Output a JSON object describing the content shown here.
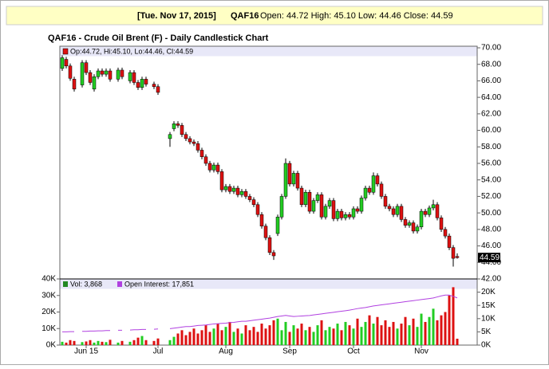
{
  "chart_data": {
    "type": "candlestick",
    "header": {
      "date": "[Tue. Nov 17, 2015]",
      "symbol": "QAF16",
      "quote": "Open: 44.72 High: 45.10 Low: 44.46 Close: 44.59"
    },
    "title": "QAF16 - Crude Oil Brent (F) - Daily Candlestick Chart",
    "legend_text": "Op:44.72, Hi:45.10, Lo:44.46, Cl:44.59",
    "volume_legend": "Vol: 3,868",
    "oi_legend": "Open Interest: 17,851",
    "up_color": "#22cc22",
    "down_color": "#dd1111",
    "oi_color": "#b040e0",
    "categories": [
      null,
      null,
      null,
      null,
      null,
      null,
      "Jun 15",
      null,
      null,
      null,
      null,
      null,
      null,
      null,
      null,
      null,
      null,
      null,
      null,
      null,
      null,
      null,
      null,
      null,
      "Jul",
      null,
      null,
      null,
      null,
      null,
      null,
      null,
      null,
      null,
      null,
      null,
      null,
      null,
      null,
      null,
      null,
      "Aug",
      null,
      null,
      null,
      null,
      null,
      null,
      null,
      null,
      null,
      null,
      null,
      null,
      null,
      null,
      null,
      "Sep",
      null,
      null,
      null,
      null,
      null,
      null,
      null,
      null,
      null,
      null,
      null,
      null,
      null,
      null,
      null,
      "Oct",
      null,
      null,
      null,
      null,
      null,
      null,
      null,
      null,
      null,
      null,
      null,
      null,
      null,
      null,
      null,
      null,
      "Nov",
      null,
      null,
      null,
      null,
      null,
      null,
      null,
      null,
      null
    ],
    "open": [
      67.5,
      68.6,
      67.8,
      66.2,
      null,
      65.5,
      68.2,
      67.0,
      65.0,
      66.5,
      67.2,
      66.8,
      67.2,
      null,
      66.2,
      67.3,
      null,
      66.0,
      67.0,
      65.8,
      65.2,
      66.2,
      null,
      65.6,
      65.3,
      null,
      null,
      59.0,
      60.2,
      60.8,
      60.6,
      59.5,
      59.0,
      58.6,
      58.4,
      57.6,
      56.8,
      56.0,
      55.2,
      55.8,
      55.0,
      52.8,
      53.2,
      52.6,
      53.0,
      52.2,
      52.6,
      52.0,
      51.6,
      51.0,
      49.8,
      48.4,
      47.0,
      45.2,
      47.5,
      49.5,
      52.0,
      56.0,
      53.5,
      54.8,
      53.0,
      51.0,
      52.5,
      50.2,
      51.5,
      52.2,
      49.5,
      50.8,
      51.5,
      49.3,
      50.2,
      49.4,
      49.8,
      49.5,
      50.5,
      50.2,
      51.8,
      53.0,
      52.5,
      54.5,
      53.5,
      52.0,
      50.8,
      50.5,
      49.8,
      50.8,
      49.2,
      48.5,
      48.8,
      47.8,
      48.3,
      50.2,
      49.8,
      50.6,
      51.0,
      49.4,
      48.0,
      47.2,
      45.8,
      44.72
    ],
    "high": [
      69.1,
      68.9,
      68.1,
      66.5,
      null,
      68.5,
      68.5,
      67.3,
      66.8,
      67.5,
      67.5,
      67.5,
      67.5,
      null,
      67.6,
      67.6,
      null,
      67.3,
      67.3,
      66.1,
      66.5,
      66.5,
      null,
      65.9,
      65.6,
      null,
      null,
      59.8,
      61.1,
      61.1,
      60.9,
      59.8,
      59.3,
      58.9,
      58.7,
      57.9,
      57.1,
      56.3,
      56.1,
      56.1,
      55.3,
      53.5,
      53.5,
      53.3,
      53.3,
      52.9,
      52.9,
      52.3,
      51.9,
      51.3,
      50.1,
      48.7,
      47.3,
      45.5,
      49.8,
      52.3,
      56.6,
      56.3,
      55.1,
      55.1,
      53.3,
      52.8,
      52.8,
      51.8,
      52.5,
      52.5,
      51.1,
      51.8,
      51.8,
      50.5,
      50.5,
      50.1,
      50.1,
      50.8,
      50.8,
      52.1,
      53.3,
      53.3,
      54.9,
      54.8,
      53.8,
      52.3,
      51.1,
      50.8,
      51.1,
      51.1,
      49.5,
      49.1,
      49.1,
      48.6,
      50.5,
      50.5,
      50.9,
      51.6,
      51.3,
      49.7,
      48.3,
      47.5,
      46.1,
      45.1
    ],
    "low": [
      67.2,
      67.5,
      66.0,
      64.7,
      null,
      65.2,
      66.7,
      65.5,
      64.7,
      66.2,
      66.5,
      66.5,
      65.9,
      null,
      65.9,
      66.2,
      null,
      65.7,
      65.5,
      64.9,
      64.9,
      65.3,
      null,
      65.0,
      64.3,
      null,
      null,
      58.0,
      59.9,
      60.3,
      59.2,
      58.7,
      58.3,
      58.1,
      57.3,
      56.5,
      55.7,
      54.9,
      54.9,
      54.7,
      52.5,
      52.5,
      52.3,
      52.3,
      51.9,
      51.9,
      51.7,
      51.3,
      50.7,
      49.5,
      48.1,
      46.7,
      44.9,
      44.3,
      47.2,
      49.2,
      51.7,
      53.2,
      53.2,
      52.7,
      50.7,
      50.7,
      49.9,
      49.9,
      51.2,
      49.2,
      49.2,
      50.5,
      49.0,
      49.0,
      49.1,
      49.1,
      49.2,
      49.2,
      49.9,
      49.9,
      51.5,
      52.2,
      52.2,
      53.2,
      51.7,
      50.5,
      50.2,
      49.5,
      49.5,
      48.9,
      48.2,
      48.2,
      47.5,
      47.5,
      48.0,
      49.5,
      49.5,
      50.3,
      49.1,
      47.7,
      46.9,
      45.5,
      43.5,
      44.46
    ],
    "close": [
      68.8,
      67.8,
      66.3,
      65.0,
      null,
      68.2,
      67.0,
      65.8,
      66.5,
      67.2,
      66.8,
      67.2,
      66.2,
      null,
      67.3,
      66.5,
      null,
      67.0,
      65.8,
      65.2,
      66.2,
      65.6,
      null,
      65.3,
      64.6,
      null,
      null,
      59.5,
      60.8,
      60.6,
      59.5,
      59.0,
      58.6,
      58.4,
      57.6,
      56.8,
      56.0,
      55.2,
      55.8,
      55.0,
      52.8,
      53.2,
      52.6,
      53.0,
      52.2,
      52.6,
      52.0,
      51.6,
      51.0,
      49.8,
      48.4,
      47.0,
      45.2,
      44.8,
      49.5,
      52.0,
      56.0,
      53.5,
      54.8,
      53.0,
      51.0,
      52.5,
      50.2,
      51.5,
      52.2,
      49.5,
      50.8,
      51.5,
      49.3,
      50.2,
      49.4,
      49.8,
      49.5,
      50.5,
      50.2,
      51.8,
      53.0,
      52.5,
      54.5,
      53.5,
      52.0,
      50.8,
      50.5,
      49.8,
      50.8,
      49.2,
      48.5,
      48.8,
      47.8,
      48.3,
      50.2,
      49.8,
      50.6,
      51.0,
      49.4,
      48.0,
      47.2,
      45.8,
      44.5,
      44.59
    ],
    "volume": [
      2000,
      1500,
      3000,
      2500,
      null,
      1800,
      2200,
      3000,
      1500,
      2500,
      2000,
      1800,
      3200,
      null,
      1500,
      2500,
      null,
      2000,
      3000,
      4500,
      5500,
      3000,
      null,
      2500,
      4000,
      null,
      null,
      3000,
      5000,
      7000,
      9000,
      6000,
      8000,
      10000,
      7000,
      9000,
      12000,
      8000,
      10000,
      13000,
      9000,
      11000,
      14000,
      8000,
      10000,
      7000,
      12000,
      9000,
      11000,
      8000,
      13000,
      10000,
      12000,
      15000,
      16000,
      9000,
      14000,
      8000,
      12000,
      10000,
      13000,
      9000,
      11000,
      8000,
      12000,
      15000,
      9000,
      11000,
      10000,
      13000,
      9000,
      14000,
      12000,
      10000,
      16000,
      11000,
      14000,
      18000,
      13000,
      17000,
      12000,
      15000,
      11000,
      14000,
      10000,
      13000,
      17000,
      12000,
      16000,
      11000,
      19000,
      14000,
      17000,
      22000,
      15000,
      18000,
      20000,
      30000,
      35000,
      3868
    ],
    "open_interest": [
      5000,
      5000,
      5100,
      5100,
      null,
      5200,
      5200,
      5300,
      5300,
      5400,
      5400,
      5500,
      5500,
      null,
      5600,
      5600,
      null,
      5700,
      5800,
      5800,
      5900,
      5900,
      null,
      6000,
      6100,
      null,
      null,
      6200,
      6400,
      6600,
      6800,
      7000,
      7000,
      7200,
      7400,
      7500,
      7600,
      7800,
      8000,
      8100,
      8200,
      8300,
      8500,
      8600,
      8800,
      9000,
      9000,
      9200,
      9400,
      9600,
      9800,
      10000,
      10200,
      10500,
      10800,
      11000,
      11200,
      11000,
      10800,
      10900,
      11000,
      11100,
      11200,
      11400,
      11600,
      11800,
      12000,
      12200,
      12400,
      12600,
      12800,
      13000,
      13200,
      13500,
      13800,
      14000,
      14200,
      14500,
      14800,
      15000,
      15200,
      15400,
      15600,
      15800,
      16000,
      16200,
      16400,
      16600,
      16800,
      17000,
      17200,
      17400,
      17600,
      17800,
      18200,
      18600,
      18900,
      18900,
      18400,
      17851
    ],
    "ylim": [
      42,
      70
    ],
    "yticks": [
      {
        "value": 42,
        "label": "42.00"
      },
      {
        "value": 44,
        "label": "44.00"
      },
      {
        "value": 46,
        "label": "46.00"
      },
      {
        "value": 48,
        "label": "48.00"
      },
      {
        "value": 50,
        "label": "50.00"
      },
      {
        "value": 52,
        "label": "52.00"
      },
      {
        "value": 54,
        "label": "54.00"
      },
      {
        "value": 56,
        "label": "56.00"
      },
      {
        "value": 58,
        "label": "58.00"
      },
      {
        "value": 60,
        "label": "60.00"
      },
      {
        "value": 62,
        "label": "62.00"
      },
      {
        "value": 64,
        "label": "64.00"
      },
      {
        "value": 66,
        "label": "66.00"
      },
      {
        "value": 68,
        "label": "68.00"
      },
      {
        "value": 70,
        "label": "70.00"
      }
    ],
    "volume_ylim": [
      0,
      40000
    ],
    "volume_yticks": [
      {
        "value": 0,
        "label": "0K"
      },
      {
        "value": 10000,
        "label": "10K"
      },
      {
        "value": 20000,
        "label": "20K"
      },
      {
        "value": 30000,
        "label": "30K"
      },
      {
        "value": 40000,
        "label": "40K"
      }
    ],
    "y2lim": [
      0,
      25000
    ],
    "y2ticks": [
      {
        "value": 0,
        "label": "0K"
      },
      {
        "value": 5000,
        "label": "5K"
      },
      {
        "value": 10000,
        "label": "10K"
      },
      {
        "value": 15000,
        "label": "15K"
      },
      {
        "value": 20000,
        "label": "20K"
      }
    ]
  }
}
